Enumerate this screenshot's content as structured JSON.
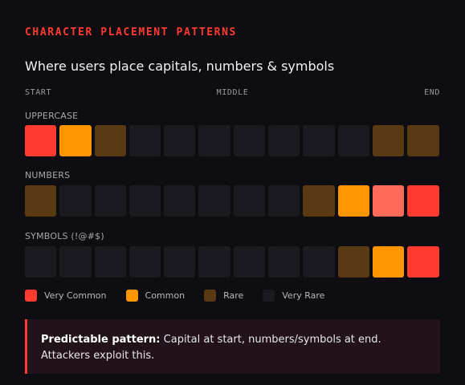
{
  "section_title": "CHARACTER PLACEMENT PATTERNS",
  "subtitle": "Where users place capitals, numbers & symbols",
  "axis": {
    "start": "START",
    "middle": "MIDDLE",
    "end": "END"
  },
  "rows": [
    {
      "label": "UPPERCASE",
      "cells": [
        "very_common",
        "common",
        "rare",
        "very_rare",
        "very_rare",
        "very_rare",
        "very_rare",
        "very_rare",
        "very_rare",
        "very_rare",
        "rare",
        "rare"
      ]
    },
    {
      "label": "NUMBERS",
      "cells": [
        "rare",
        "very_rare",
        "very_rare",
        "very_rare",
        "very_rare",
        "very_rare",
        "very_rare",
        "very_rare",
        "rare",
        "common",
        "very_common_light",
        "very_common"
      ]
    },
    {
      "label": "SYMBOLS (!@#$)",
      "cells": [
        "very_rare",
        "very_rare",
        "very_rare",
        "very_rare",
        "very_rare",
        "very_rare",
        "very_rare",
        "very_rare",
        "very_rare",
        "rare",
        "common",
        "very_common"
      ]
    }
  ],
  "legend": [
    {
      "label": "Very Common",
      "color": "#ff3b30"
    },
    {
      "label": "Common",
      "color": "#ff9500"
    },
    {
      "label": "Rare",
      "color": "#5a3a12"
    },
    {
      "label": "Very Rare",
      "color": "#1a1a20"
    }
  ],
  "callout": {
    "bold": "Predictable pattern:",
    "text": " Capital at start, numbers/symbols at end. Attackers exploit this."
  },
  "colors": {
    "accent": "#ff3b30",
    "very_common": "#ff3b30",
    "very_common_light": "#ff6b5b",
    "common": "#ff9500",
    "rare": "#5a3a12",
    "very_rare": "#1a1a20",
    "background": "#0d0d12",
    "callout_bg": "#22131a"
  }
}
